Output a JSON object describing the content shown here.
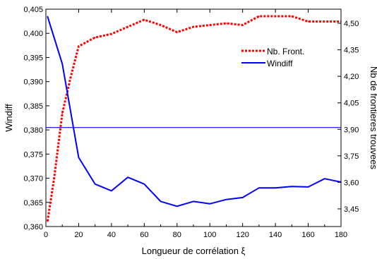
{
  "chart_data": {
    "type": "line",
    "xlabel": "Longueur de corrélation ξ",
    "ylabel_left": "Windiff",
    "ylabel_right": "Nb de frontieres trouvees",
    "xlim": [
      0,
      180
    ],
    "ylim_left": [
      0.36,
      0.405
    ],
    "ylim_right": [
      3.35,
      4.58
    ],
    "x_ticks": [
      0,
      20,
      40,
      60,
      80,
      100,
      120,
      140,
      160,
      180
    ],
    "x_tick_labels": [
      "0",
      "20",
      "40",
      "60",
      "80",
      "100",
      "120",
      "140",
      "160",
      "180"
    ],
    "y_left_ticks": [
      0.36,
      0.365,
      0.37,
      0.375,
      0.38,
      0.385,
      0.39,
      0.395,
      0.4,
      0.405
    ],
    "y_left_tick_labels": [
      "0,360",
      "0,365",
      "0,370",
      "0,375",
      "0,380",
      "0,385",
      "0,390",
      "0,395",
      "0,400",
      "0,405"
    ],
    "y_right_ticks": [
      3.45,
      3.6,
      3.75,
      3.9,
      4.05,
      4.2,
      4.35,
      4.5
    ],
    "y_right_tick_labels": [
      "3,45",
      "3,60",
      "3,75",
      "3,90",
      "4,05",
      "4,20",
      "4,35",
      "4,50"
    ],
    "reference_line": {
      "axis": "left",
      "y": 0.3805,
      "color": "#0000ff"
    },
    "legend_position": "top-right",
    "series": [
      {
        "name": "Nb. Front.",
        "axis": "right",
        "style": "dotted",
        "color": "#ff0000",
        "x": [
          1,
          5,
          10,
          15,
          20,
          30,
          40,
          50,
          60,
          70,
          80,
          90,
          100,
          110,
          120,
          130,
          140,
          150,
          160,
          170,
          180
        ],
        "y": [
          3.38,
          3.62,
          3.99,
          4.19,
          4.37,
          4.42,
          4.44,
          4.48,
          4.52,
          4.49,
          4.45,
          4.48,
          4.49,
          4.5,
          4.49,
          4.54,
          4.54,
          4.54,
          4.51,
          4.51,
          4.51
        ]
      },
      {
        "name": "Windiff",
        "axis": "left",
        "style": "solid",
        "color": "#0000ff",
        "x": [
          1,
          10,
          20,
          30,
          40,
          50,
          60,
          70,
          80,
          90,
          100,
          110,
          120,
          130,
          140,
          150,
          160,
          170,
          180
        ],
        "y": [
          0.4035,
          0.3937,
          0.3743,
          0.3688,
          0.3674,
          0.3702,
          0.3688,
          0.3652,
          0.3642,
          0.3652,
          0.3647,
          0.3656,
          0.366,
          0.368,
          0.368,
          0.3683,
          0.3682,
          0.3699,
          0.3692
        ]
      }
    ]
  }
}
